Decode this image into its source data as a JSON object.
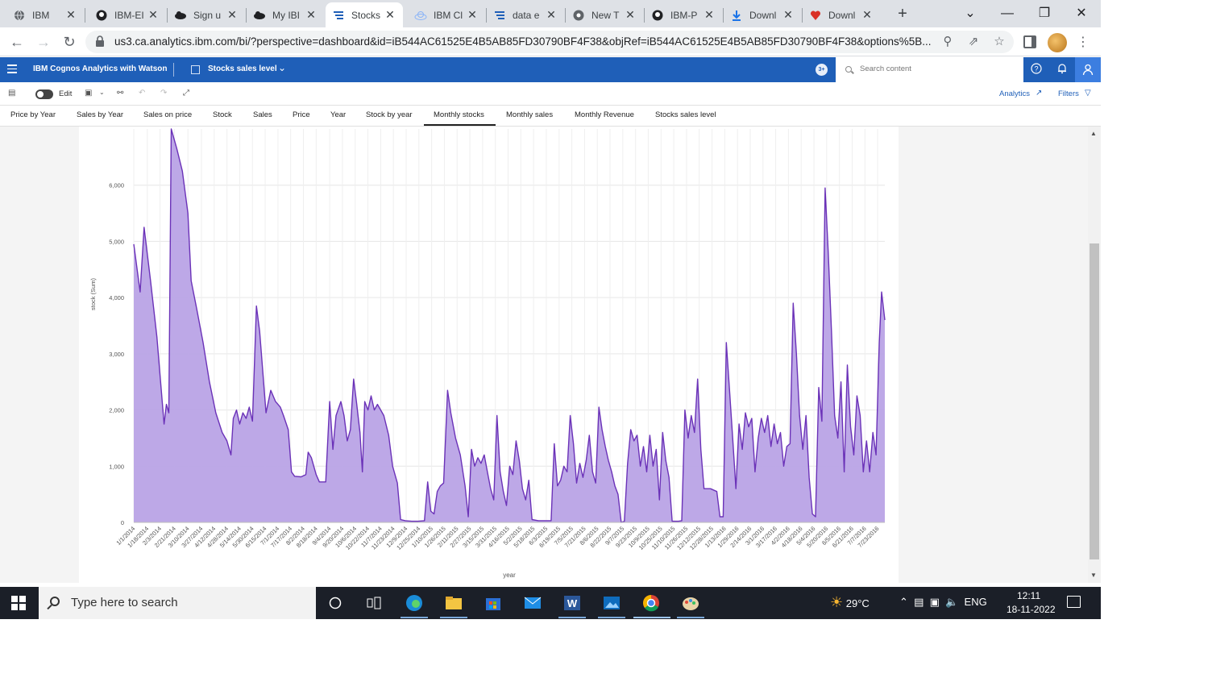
{
  "browser": {
    "tabs": [
      {
        "title": "IBM",
        "icon": "globe-icon"
      },
      {
        "title": "IBM-EI",
        "icon": "github-icon"
      },
      {
        "title": "Sign u",
        "icon": "ibm-cloud-icon"
      },
      {
        "title": "My IBI",
        "icon": "ibm-cloud-icon"
      },
      {
        "title": "Stocks",
        "icon": "cognos-icon"
      },
      {
        "title": "IBM Cl",
        "icon": "cloud-icon"
      },
      {
        "title": "data e",
        "icon": "cognos-icon"
      },
      {
        "title": "New T",
        "icon": "chrome-icon"
      },
      {
        "title": "IBM-P",
        "icon": "github-icon"
      },
      {
        "title": "Downl",
        "icon": "download-icon"
      },
      {
        "title": "Downl",
        "icon": "heart-icon"
      }
    ],
    "url": "us3.ca.analytics.ibm.com/bi/?perspective=dashboard&id=iB544AC61525E4B5AB85FD30790BF4F38&objRef=iB544AC61525E4B5AB85FD30790BF4F38&options%5B..."
  },
  "app": {
    "title": "IBM Cognos Analytics with Watson",
    "dashboard_name": "Stocks sales level",
    "notification_count": "3+",
    "search_placeholder": "Search content"
  },
  "toolbar": {
    "edit_label": "Edit",
    "analytics_label": "Analytics",
    "filters_label": "Filters"
  },
  "tabs": [
    "Price by Year",
    "Sales by Year",
    "Sales on price",
    "Stock",
    "Sales",
    "Price",
    "Year",
    "Stock by year",
    "Monthly stocks",
    "Monthly sales",
    "Monthly Revenue",
    "Stocks sales level"
  ],
  "active_tab": "Monthly stocks",
  "colors": {
    "accent": "#1f5fb8",
    "area_fill": "#b9a3e6",
    "area_line": "#6b32b8"
  },
  "chart_data": {
    "type": "area",
    "xlabel": "year",
    "ylabel": "stock (Sum)",
    "ylim": [
      0,
      7000
    ],
    "yticks": [
      "0",
      "1,000",
      "2,000",
      "3,000",
      "4,000",
      "5,000",
      "6,000"
    ],
    "x_tick_labels": [
      "1/1/2014",
      "1/18/2014",
      "2/3/2014",
      "2/21/2014",
      "3/10/2014",
      "3/27/2014",
      "4/12/2014",
      "4/28/2014",
      "5/14/2014",
      "5/30/2014",
      "6/15/2014",
      "7/1/2014",
      "7/17/2014",
      "8/2/2014",
      "8/18/2014",
      "9/4/2014",
      "9/20/2014",
      "10/6/2014",
      "10/22/2014",
      "11/7/2014",
      "11/23/2014",
      "12/9/2014",
      "12/25/2014",
      "1/10/2015",
      "1/26/2015",
      "2/11/2015",
      "2/27/2015",
      "3/15/2015",
      "3/31/2015",
      "4/16/2015",
      "5/2/2015",
      "5/18/2015",
      "6/3/2015",
      "6/19/2015",
      "7/5/2015",
      "7/21/2015",
      "8/6/2015",
      "8/22/2015",
      "9/7/2015",
      "9/23/2015",
      "10/9/2015",
      "10/25/2015",
      "11/10/2015",
      "11/26/2015",
      "12/12/2015",
      "12/28/2015",
      "1/13/2016",
      "1/29/2016",
      "2/14/2016",
      "3/1/2016",
      "3/17/2016",
      "4/2/2016",
      "4/18/2016",
      "5/4/2016",
      "5/20/2016",
      "6/5/2016",
      "6/21/2016",
      "7/7/2016",
      "7/23/2016"
    ],
    "x_start": "1/1/2014",
    "x_end": "8/1/2016",
    "series": [
      {
        "values": [
          [
            "1/1/2014",
            4950
          ],
          [
            "1/9/2014",
            4100
          ],
          [
            "1/14/2014",
            5250
          ],
          [
            "1/22/2014",
            4300
          ],
          [
            "1/30/2014",
            3300
          ],
          [
            "2/8/2014",
            1750
          ],
          [
            "2/11/2014",
            2100
          ],
          [
            "2/14/2014",
            1950
          ],
          [
            "2/17/2014",
            7000
          ],
          [
            "2/24/2014",
            6650
          ],
          [
            "3/3/2014",
            6250
          ],
          [
            "3/10/2014",
            5500
          ],
          [
            "3/14/2014",
            4300
          ],
          [
            "3/21/2014",
            3800
          ],
          [
            "3/29/2014",
            3200
          ],
          [
            "4/6/2014",
            2500
          ],
          [
            "4/14/2014",
            1950
          ],
          [
            "4/22/2014",
            1600
          ],
          [
            "4/28/2014",
            1450
          ],
          [
            "5/3/2014",
            1200
          ],
          [
            "5/6/2014",
            1850
          ],
          [
            "5/10/2014",
            2000
          ],
          [
            "5/14/2014",
            1750
          ],
          [
            "5/18/2014",
            1950
          ],
          [
            "5/22/2014",
            1850
          ],
          [
            "5/26/2014",
            2050
          ],
          [
            "5/30/2014",
            1800
          ],
          [
            "6/4/2014",
            3850
          ],
          [
            "6/8/2014",
            3400
          ],
          [
            "6/16/2014",
            1950
          ],
          [
            "6/22/2014",
            2350
          ],
          [
            "6/28/2014",
            2150
          ],
          [
            "7/4/2014",
            2050
          ],
          [
            "7/8/2014",
            1900
          ],
          [
            "7/14/2014",
            1650
          ],
          [
            "7/18/2014",
            900
          ],
          [
            "7/22/2014",
            820
          ],
          [
            "7/30/2014",
            810
          ],
          [
            "8/5/2014",
            850
          ],
          [
            "8/8/2014",
            1250
          ],
          [
            "8/12/2014",
            1150
          ],
          [
            "8/18/2014",
            850
          ],
          [
            "8/22/2014",
            720
          ],
          [
            "8/30/2014",
            720
          ],
          [
            "9/4/2014",
            2150
          ],
          [
            "9/8/2014",
            1300
          ],
          [
            "9/12/2014",
            1900
          ],
          [
            "9/18/2014",
            2150
          ],
          [
            "9/22/2014",
            1900
          ],
          [
            "9/26/2014",
            1450
          ],
          [
            "9/30/2014",
            1650
          ],
          [
            "10/4/2014",
            2550
          ],
          [
            "10/8/2014",
            2100
          ],
          [
            "10/12/2014",
            1600
          ],
          [
            "10/15/2014",
            900
          ],
          [
            "10/18/2014",
            2150
          ],
          [
            "10/22/2014",
            2000
          ],
          [
            "10/26/2014",
            2250
          ],
          [
            "10/30/2014",
            2000
          ],
          [
            "11/3/2014",
            2100
          ],
          [
            "11/7/2014",
            2000
          ],
          [
            "11/11/2014",
            1900
          ],
          [
            "11/17/2014",
            1550
          ],
          [
            "11/22/2014",
            1000
          ],
          [
            "11/28/2014",
            700
          ],
          [
            "12/2/2014",
            50
          ],
          [
            "12/8/2014",
            30
          ],
          [
            "12/16/2014",
            20
          ],
          [
            "12/24/2014",
            20
          ],
          [
            "1/1/2015",
            30
          ],
          [
            "1/5/2015",
            720
          ],
          [
            "1/9/2015",
            200
          ],
          [
            "1/13/2015",
            150
          ],
          [
            "1/17/2015",
            550
          ],
          [
            "1/21/2015",
            650
          ],
          [
            "1/25/2015",
            700
          ],
          [
            "1/30/2015",
            2350
          ],
          [
            "2/3/2015",
            1950
          ],
          [
            "2/9/2015",
            1500
          ],
          [
            "2/15/2015",
            1200
          ],
          [
            "2/21/2015",
            650
          ],
          [
            "2/25/2015",
            100
          ],
          [
            "3/1/2015",
            1300
          ],
          [
            "3/5/2015",
            1000
          ],
          [
            "3/9/2015",
            1150
          ],
          [
            "3/13/2015",
            1050
          ],
          [
            "3/17/2015",
            1200
          ],
          [
            "3/21/2015",
            900
          ],
          [
            "3/25/2015",
            600
          ],
          [
            "3/29/2015",
            400
          ],
          [
            "4/2/2015",
            1900
          ],
          [
            "4/6/2015",
            900
          ],
          [
            "4/10/2015",
            550
          ],
          [
            "4/14/2015",
            300
          ],
          [
            "4/18/2015",
            1000
          ],
          [
            "4/22/2015",
            850
          ],
          [
            "4/26/2015",
            1450
          ],
          [
            "4/30/2015",
            1100
          ],
          [
            "5/4/2015",
            600
          ],
          [
            "5/8/2015",
            400
          ],
          [
            "5/12/2015",
            750
          ],
          [
            "5/16/2015",
            50
          ],
          [
            "5/24/2015",
            30
          ],
          [
            "6/1/2015",
            30
          ],
          [
            "6/9/2015",
            30
          ],
          [
            "6/13/2015",
            1400
          ],
          [
            "6/17/2015",
            650
          ],
          [
            "6/21/2015",
            750
          ],
          [
            "6/25/2015",
            1000
          ],
          [
            "6/29/2015",
            900
          ],
          [
            "7/3/2015",
            1900
          ],
          [
            "7/7/2015",
            1400
          ],
          [
            "7/11/2015",
            700
          ],
          [
            "7/15/2015",
            1050
          ],
          [
            "7/19/2015",
            800
          ],
          [
            "7/23/2015",
            1100
          ],
          [
            "7/27/2015",
            1550
          ],
          [
            "7/31/2015",
            900
          ],
          [
            "8/4/2015",
            700
          ],
          [
            "8/8/2015",
            2050
          ],
          [
            "8/12/2015",
            1650
          ],
          [
            "8/16/2015",
            1350
          ],
          [
            "8/20/2015",
            1100
          ],
          [
            "8/24/2015",
            900
          ],
          [
            "8/28/2015",
            650
          ],
          [
            "9/1/2015",
            500
          ],
          [
            "9/5/2015",
            0
          ],
          [
            "9/9/2015",
            20
          ],
          [
            "9/13/2015",
            1050
          ],
          [
            "9/17/2015",
            1650
          ],
          [
            "9/21/2015",
            1450
          ],
          [
            "9/25/2015",
            1550
          ],
          [
            "9/29/2015",
            1000
          ],
          [
            "10/3/2015",
            1350
          ],
          [
            "10/7/2015",
            900
          ],
          [
            "10/11/2015",
            1550
          ],
          [
            "10/15/2015",
            1000
          ],
          [
            "10/19/2015",
            1300
          ],
          [
            "10/23/2015",
            400
          ],
          [
            "10/27/2015",
            1600
          ],
          [
            "10/31/2015",
            1100
          ],
          [
            "11/4/2015",
            800
          ],
          [
            "11/8/2015",
            20
          ],
          [
            "11/16/2015",
            20
          ],
          [
            "11/20/2015",
            30
          ],
          [
            "11/24/2015",
            2000
          ],
          [
            "11/28/2015",
            1500
          ],
          [
            "12/2/2015",
            1900
          ],
          [
            "12/6/2015",
            1600
          ],
          [
            "12/10/2015",
            2550
          ],
          [
            "12/14/2015",
            1300
          ],
          [
            "12/18/2015",
            600
          ],
          [
            "12/26/2015",
            600
          ],
          [
            "1/3/2016",
            550
          ],
          [
            "1/7/2016",
            100
          ],
          [
            "1/11/2016",
            100
          ],
          [
            "1/15/2016",
            3200
          ],
          [
            "1/19/2016",
            2350
          ],
          [
            "1/23/2016",
            1500
          ],
          [
            "1/27/2016",
            600
          ],
          [
            "1/31/2016",
            1750
          ],
          [
            "2/4/2016",
            1300
          ],
          [
            "2/8/2016",
            1950
          ],
          [
            "2/12/2016",
            1700
          ],
          [
            "2/16/2016",
            1850
          ],
          [
            "2/20/2016",
            900
          ],
          [
            "2/24/2016",
            1500
          ],
          [
            "2/28/2016",
            1850
          ],
          [
            "3/3/2016",
            1600
          ],
          [
            "3/7/2016",
            1900
          ],
          [
            "3/11/2016",
            1350
          ],
          [
            "3/15/2016",
            1750
          ],
          [
            "3/19/2016",
            1400
          ],
          [
            "3/23/2016",
            1600
          ],
          [
            "3/27/2016",
            1000
          ],
          [
            "3/31/2016",
            1350
          ],
          [
            "4/4/2016",
            1400
          ],
          [
            "4/8/2016",
            3900
          ],
          [
            "4/12/2016",
            3000
          ],
          [
            "4/16/2016",
            1900
          ],
          [
            "4/20/2016",
            1300
          ],
          [
            "4/24/2016",
            1900
          ],
          [
            "4/28/2016",
            800
          ],
          [
            "5/2/2016",
            150
          ],
          [
            "5/6/2016",
            100
          ],
          [
            "5/10/2016",
            2400
          ],
          [
            "5/14/2016",
            1800
          ],
          [
            "5/18/2016",
            5950
          ],
          [
            "5/22/2016",
            4800
          ],
          [
            "5/26/2016",
            3400
          ],
          [
            "5/30/2016",
            1900
          ],
          [
            "6/3/2016",
            1500
          ],
          [
            "6/7/2016",
            2500
          ],
          [
            "6/11/2016",
            900
          ],
          [
            "6/15/2016",
            2800
          ],
          [
            "6/19/2016",
            1700
          ],
          [
            "6/23/2016",
            1200
          ],
          [
            "6/27/2016",
            2250
          ],
          [
            "7/1/2016",
            1900
          ],
          [
            "7/5/2016",
            900
          ],
          [
            "7/9/2016",
            1450
          ],
          [
            "7/13/2016",
            900
          ],
          [
            "7/17/2016",
            1600
          ],
          [
            "7/21/2016",
            1200
          ],
          [
            "7/25/2016",
            3200
          ],
          [
            "7/28/2016",
            4100
          ],
          [
            "8/1/2016",
            3600
          ]
        ]
      }
    ]
  }
}
